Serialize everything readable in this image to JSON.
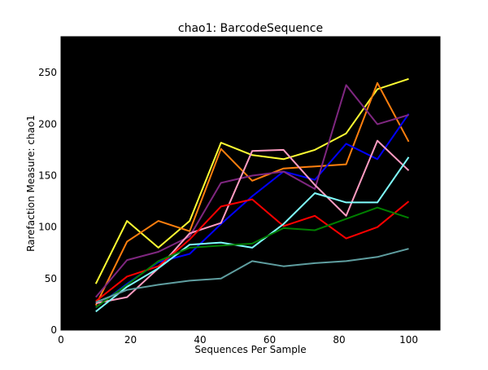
{
  "chart_data": {
    "type": "line",
    "title": "chao1: BarcodeSequence",
    "xlabel": "Sequences Per Sample",
    "ylabel": "Rarefaction Measure: chao1",
    "xlim": [
      0,
      109
    ],
    "ylim": [
      0,
      285
    ],
    "xticks": [
      0,
      20,
      40,
      60,
      80,
      100
    ],
    "yticks": [
      0,
      50,
      100,
      150,
      200,
      250
    ],
    "background": "#000000",
    "x": [
      10,
      19,
      28,
      37,
      46,
      55,
      64,
      73,
      82,
      91,
      100
    ],
    "series": [
      {
        "color": "#ffff33",
        "values": [
          45,
          106,
          80,
          106,
          182,
          170,
          166,
          175,
          191,
          234,
          244
        ]
      },
      {
        "color": "#ff7f0e",
        "values": [
          24,
          86,
          106,
          96,
          176,
          145,
          157,
          159,
          161,
          240,
          183
        ]
      },
      {
        "color": "#0000ff",
        "values": [
          22,
          45,
          66,
          74,
          103,
          130,
          154,
          146,
          181,
          166,
          210
        ]
      },
      {
        "color": "#7f2780",
        "values": [
          32,
          68,
          76,
          91,
          143,
          150,
          154,
          137,
          238,
          200,
          209
        ]
      },
      {
        "color": "#ff9cc2",
        "values": [
          26,
          32,
          60,
          94,
          104,
          174,
          175,
          141,
          111,
          184,
          155
        ]
      },
      {
        "color": "#ff0000",
        "values": [
          28,
          52,
          62,
          88,
          120,
          127,
          101,
          111,
          89,
          100,
          125
        ]
      },
      {
        "color": "#80ffff",
        "values": [
          18,
          42,
          60,
          83,
          85,
          80,
          103,
          133,
          124,
          124,
          168
        ]
      },
      {
        "color": "#007f00",
        "values": [
          22,
          44,
          67,
          80,
          82,
          84,
          99,
          97,
          108,
          119,
          109
        ]
      },
      {
        "color": "#5f9ea0",
        "values": [
          27,
          39,
          44,
          48,
          50,
          67,
          62,
          65,
          67,
          71,
          79
        ]
      }
    ]
  }
}
